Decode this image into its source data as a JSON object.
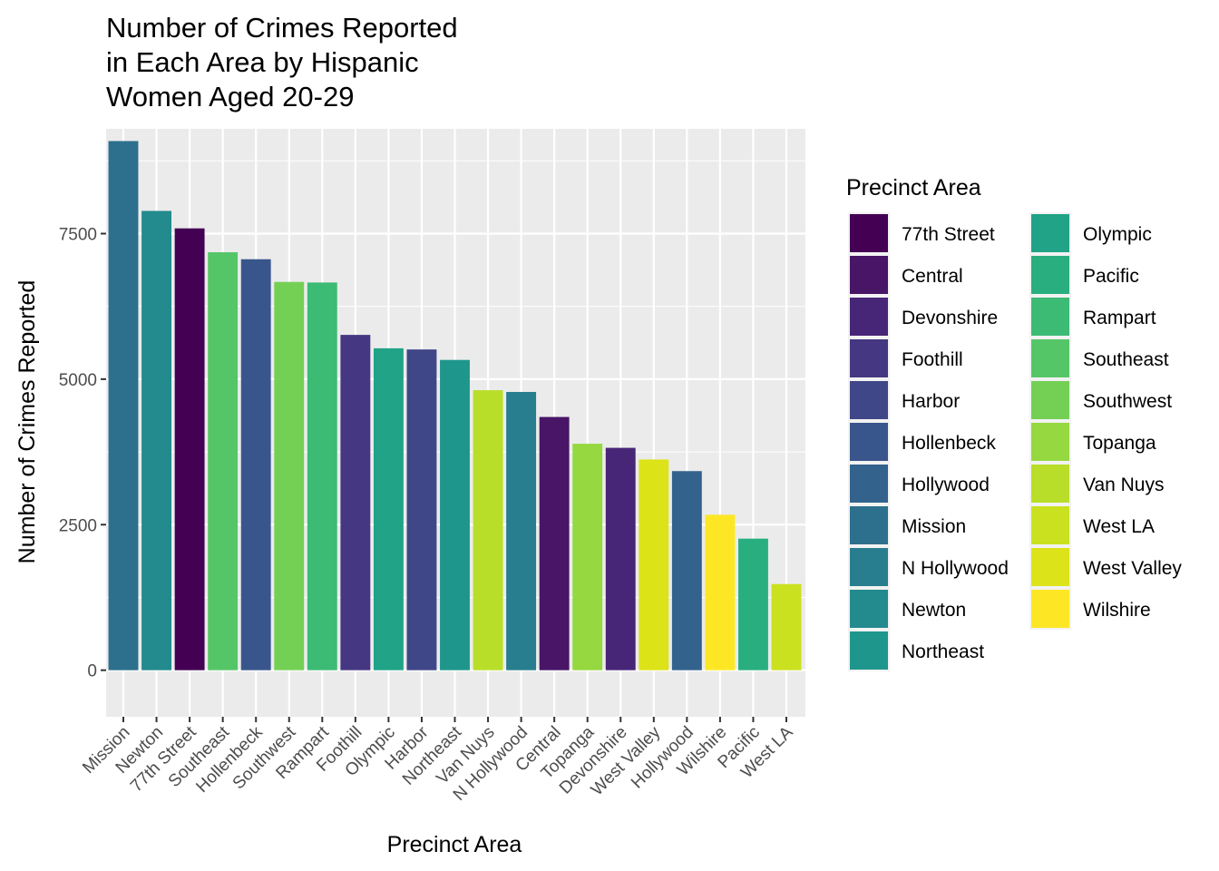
{
  "chart_data": {
    "type": "bar",
    "title_lines": [
      "Number of Crimes Reported",
      "in Each Area by Hispanic",
      "Women Aged 20-29"
    ],
    "xlabel": "Precinct Area",
    "ylabel": "Number of Crimes Reported",
    "ylim": [
      -800,
      9300
    ],
    "yticks": [
      0,
      2500,
      5000,
      7500
    ],
    "categories": [
      "Mission",
      "Newton",
      "77th Street",
      "Southeast",
      "Hollenbeck",
      "Southwest",
      "Rampart",
      "Foothill",
      "Olympic",
      "Harbor",
      "Northeast",
      "Van Nuys",
      "N Hollywood",
      "Central",
      "Topanga",
      "Devonshire",
      "West Valley",
      "Hollywood",
      "Wilshire",
      "Pacific",
      "West LA"
    ],
    "values": [
      9090,
      7890,
      7590,
      7180,
      7060,
      6670,
      6660,
      5760,
      5530,
      5510,
      5330,
      4810,
      4780,
      4350,
      3890,
      3820,
      3620,
      3420,
      2670,
      2260,
      1480
    ],
    "grid": true,
    "legend": {
      "title": "Precinct Area",
      "position": "right",
      "entries": [
        "77th Street",
        "Central",
        "Devonshire",
        "Foothill",
        "Harbor",
        "Hollenbeck",
        "Hollywood",
        "Mission",
        "N Hollywood",
        "Newton",
        "Northeast",
        "Olympic",
        "Pacific",
        "Rampart",
        "Southeast",
        "Southwest",
        "Topanga",
        "Van Nuys",
        "West LA",
        "West Valley",
        "Wilshire"
      ]
    },
    "colors": {
      "77th Street": "#440154",
      "Central": "#481567",
      "Devonshire": "#482677",
      "Foothill": "#453781",
      "Harbor": "#404788",
      "Hollenbeck": "#39568c",
      "Hollywood": "#33638d",
      "Mission": "#2d708e",
      "N Hollywood": "#287d8e",
      "Newton": "#238a8d",
      "Northeast": "#1f968b",
      "Olympic": "#20a387",
      "Pacific": "#29af7f",
      "Rampart": "#3cbb75",
      "Southeast": "#55c667",
      "Southwest": "#73d055",
      "Topanga": "#95d840",
      "Van Nuys": "#b8de29",
      "West LA": "#cae11f",
      "West Valley": "#dce319",
      "Wilshire": "#fde725"
    },
    "panel_background": "#ebebeb",
    "gridline_color": "#ffffff"
  }
}
